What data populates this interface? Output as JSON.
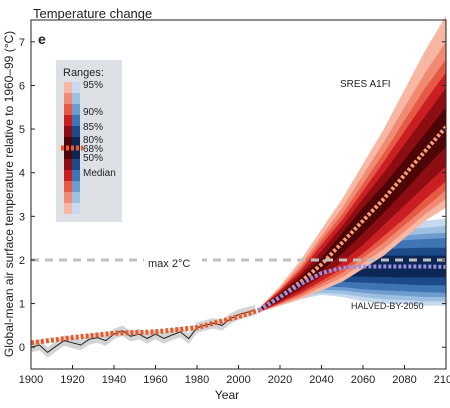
{
  "chart_data": {
    "type": "area",
    "title": "Temperature change",
    "panel_letter": "e",
    "xlabel": "Year",
    "ylabel": "Global-mean air surface temperature relative to 1960–99 (°C)",
    "xlim": [
      1900,
      2100
    ],
    "ylim": [
      -0.5,
      7.5
    ],
    "x_ticks": [
      "1900",
      "1920",
      "1940",
      "1960",
      "1980",
      "2000",
      "2020",
      "2040",
      "2060",
      "2080",
      "2100"
    ],
    "y_ticks": [
      "0",
      "1",
      "2",
      "3",
      "4",
      "5",
      "6",
      "7"
    ],
    "threshold": {
      "value": 2,
      "label": "max 2°C"
    },
    "legend": {
      "title": "Ranges:",
      "labels": [
        "95%",
        "90%",
        "85%",
        "80%",
        "68%",
        "50%",
        "Median"
      ]
    },
    "historical": {
      "x": [
        1900,
        1904,
        1908,
        1912,
        1916,
        1920,
        1924,
        1928,
        1932,
        1936,
        1940,
        1944,
        1948,
        1952,
        1956,
        1960,
        1964,
        1968,
        1972,
        1976,
        1980,
        1984,
        1988,
        1992,
        1996,
        2000,
        2004,
        2008
      ],
      "y": [
        0.0,
        0.05,
        -0.12,
        0.02,
        0.15,
        0.1,
        0.05,
        0.18,
        0.22,
        0.15,
        0.3,
        0.38,
        0.25,
        0.3,
        0.2,
        0.3,
        0.2,
        0.28,
        0.35,
        0.2,
        0.45,
        0.5,
        0.55,
        0.5,
        0.65,
        0.75,
        0.8,
        0.85
      ]
    },
    "historical_model_median": {
      "x": [
        1900,
        1920,
        1940,
        1960,
        1980,
        2000,
        2010
      ],
      "y": [
        0.1,
        0.22,
        0.32,
        0.35,
        0.45,
        0.7,
        0.85
      ]
    },
    "series": [
      {
        "name": "SRES A1FI",
        "color": "#c0171d",
        "x": [
          2010,
          2020,
          2030,
          2040,
          2050,
          2060,
          2070,
          2080,
          2090,
          2100
        ],
        "median": [
          0.85,
          1.15,
          1.5,
          1.9,
          2.4,
          2.9,
          3.4,
          3.95,
          4.5,
          5.05
        ],
        "bands": [
          {
            "range": "95%",
            "lower": [
              0.8,
              0.95,
              1.1,
              1.3,
              1.5,
              1.8,
              2.1,
              2.5,
              2.9,
              3.2
            ],
            "upper": [
              0.9,
              1.4,
              2.0,
              2.7,
              3.4,
              4.2,
              5.0,
              5.9,
              6.8,
              7.6
            ]
          },
          {
            "range": "90%",
            "lower": [
              0.8,
              0.98,
              1.15,
              1.38,
              1.6,
              1.92,
              2.25,
              2.65,
              3.05,
              3.4
            ],
            "upper": [
              0.9,
              1.35,
              1.9,
              2.55,
              3.2,
              3.95,
              4.7,
              5.5,
              6.3,
              7.0
            ]
          },
          {
            "range": "85%",
            "lower": [
              0.81,
              1.0,
              1.2,
              1.45,
              1.7,
              2.05,
              2.4,
              2.8,
              3.2,
              3.6
            ],
            "upper": [
              0.89,
              1.32,
              1.82,
              2.45,
              3.05,
              3.75,
              4.45,
              5.2,
              5.95,
              6.6
            ]
          },
          {
            "range": "80%",
            "lower": [
              0.81,
              1.02,
              1.25,
              1.52,
              1.8,
              2.15,
              2.55,
              2.95,
              3.4,
              3.8
            ],
            "upper": [
              0.89,
              1.3,
              1.76,
              2.35,
              2.92,
              3.58,
              4.25,
              4.95,
              5.65,
              6.3
            ]
          },
          {
            "range": "68%",
            "lower": [
              0.82,
              1.05,
              1.32,
              1.62,
              1.95,
              2.35,
              2.8,
              3.25,
              3.7,
              4.15
            ],
            "upper": [
              0.88,
              1.25,
              1.68,
              2.2,
              2.78,
              3.4,
              4.0,
              4.65,
              5.3,
              5.95
            ]
          },
          {
            "range": "50%",
            "lower": [
              0.83,
              1.08,
              1.4,
              1.75,
              2.15,
              2.6,
              3.08,
              3.58,
              4.1,
              4.6
            ],
            "upper": [
              0.87,
              1.22,
              1.6,
              2.05,
              2.62,
              3.2,
              3.72,
              4.3,
              4.9,
              5.5
            ]
          }
        ]
      },
      {
        "name": "HALVED-BY-2050",
        "color": "#3a6bb5",
        "x": [
          2010,
          2020,
          2030,
          2040,
          2050,
          2060,
          2070,
          2080,
          2090,
          2100
        ],
        "median": [
          0.85,
          1.15,
          1.45,
          1.7,
          1.82,
          1.85,
          1.85,
          1.85,
          1.85,
          1.84
        ],
        "bands": [
          {
            "range": "95%",
            "lower": [
              0.8,
              0.95,
              1.1,
              1.2,
              1.15,
              1.05,
              1.0,
              0.98,
              0.95,
              0.95
            ],
            "upper": [
              0.9,
              1.35,
              1.85,
              2.3,
              2.55,
              2.7,
              2.8,
              2.85,
              2.9,
              2.95
            ]
          },
          {
            "range": "90%",
            "lower": [
              0.8,
              0.98,
              1.15,
              1.25,
              1.22,
              1.15,
              1.1,
              1.08,
              1.05,
              1.05
            ],
            "upper": [
              0.9,
              1.32,
              1.78,
              2.2,
              2.45,
              2.58,
              2.65,
              2.7,
              2.74,
              2.78
            ]
          },
          {
            "range": "85%",
            "lower": [
              0.81,
              1.0,
              1.2,
              1.32,
              1.3,
              1.25,
              1.2,
              1.18,
              1.15,
              1.15
            ],
            "upper": [
              0.89,
              1.3,
              1.72,
              2.12,
              2.36,
              2.47,
              2.52,
              2.56,
              2.6,
              2.62
            ]
          },
          {
            "range": "80%",
            "lower": [
              0.81,
              1.02,
              1.25,
              1.38,
              1.38,
              1.33,
              1.3,
              1.28,
              1.26,
              1.25
            ],
            "upper": [
              0.89,
              1.28,
              1.67,
              2.05,
              2.28,
              2.38,
              2.42,
              2.45,
              2.48,
              2.5
            ]
          },
          {
            "range": "68%",
            "lower": [
              0.82,
              1.05,
              1.3,
              1.46,
              1.5,
              1.48,
              1.46,
              1.44,
              1.42,
              1.42
            ],
            "upper": [
              0.88,
              1.25,
              1.6,
              1.95,
              2.15,
              2.22,
              2.25,
              2.27,
              2.28,
              2.28
            ]
          },
          {
            "range": "50%",
            "lower": [
              0.83,
              1.08,
              1.36,
              1.55,
              1.62,
              1.62,
              1.61,
              1.6,
              1.6,
              1.6
            ],
            "upper": [
              0.87,
              1.22,
              1.54,
              1.85,
              2.02,
              2.08,
              2.1,
              2.1,
              2.1,
              2.1
            ]
          }
        ]
      }
    ],
    "colors": {
      "red_bands": [
        "#f7b7a3",
        "#f28a73",
        "#e65a45",
        "#c91e22",
        "#8e0d12",
        "#4d0508"
      ],
      "blue_bands": [
        "#c7d9ee",
        "#9dbfe2",
        "#6e9ccf",
        "#3f74b5",
        "#1c4a8a",
        "#0c2656"
      ],
      "median_historical": "#e85a2a",
      "median_high": "#f2a07a",
      "median_low": "#9a8fe0",
      "threshold_line": "#c0c0c0",
      "observed": "#222222",
      "spread_grey": "#b8b8b8"
    }
  }
}
